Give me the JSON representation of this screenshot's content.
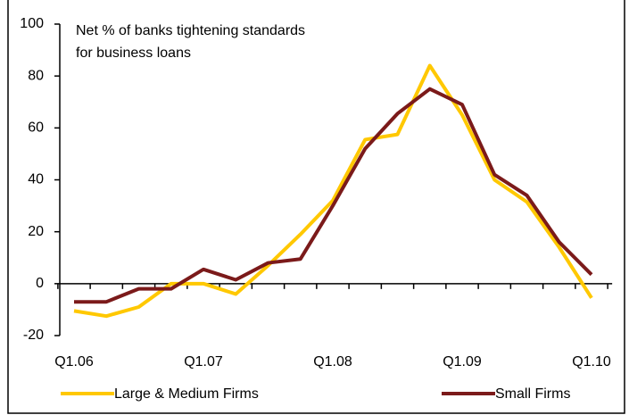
{
  "chart_data": {
    "type": "line",
    "annotation": [
      "Net % of banks tightening standards",
      "for business loans"
    ],
    "categories": [
      "Q1.06",
      null,
      null,
      null,
      "Q1.07",
      null,
      null,
      null,
      "Q1.08",
      null,
      null,
      null,
      "Q1.09",
      null,
      null,
      null,
      "Q1.10"
    ],
    "series": [
      {
        "name": "Large & Medium Firms",
        "color": "#ffc800",
        "values": [
          -10.5,
          -12.5,
          -9,
          0,
          0,
          -4,
          7,
          19,
          32,
          55.5,
          57.5,
          84,
          65,
          40,
          31.5,
          14,
          -5.5
        ]
      },
      {
        "name": "Small Firms",
        "color": "#7b1a1a",
        "values": [
          -7,
          -7,
          -2,
          -2,
          5.5,
          1.5,
          8,
          9.5,
          30,
          52,
          65.5,
          75,
          69,
          42,
          34,
          16,
          3.5
        ]
      }
    ],
    "ylim": [
      -20,
      100
    ],
    "yticks": [
      -20,
      0,
      20,
      40,
      60,
      80,
      100
    ]
  }
}
